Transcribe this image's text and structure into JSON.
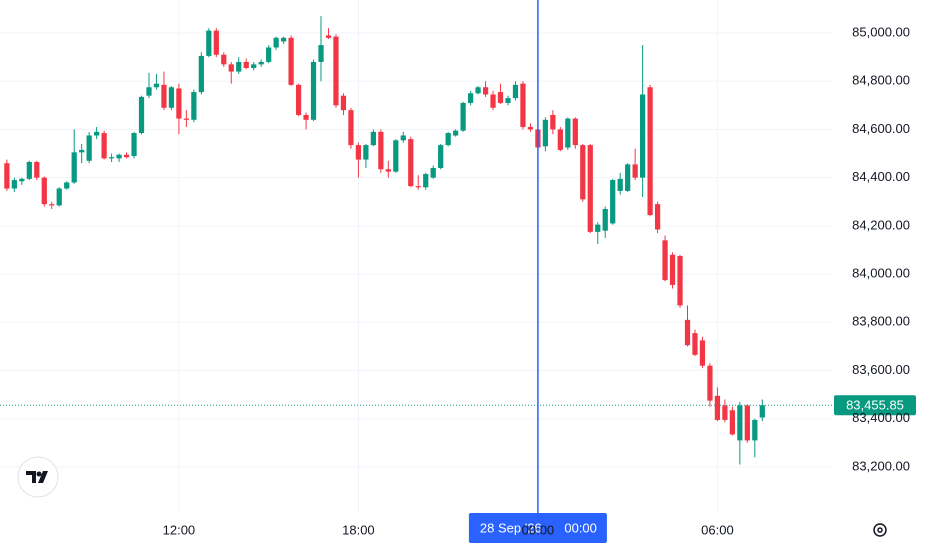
{
  "chart_data": {
    "type": "candlestick",
    "x": [
      6.25,
      6.5,
      6.75,
      7,
      7.25,
      7.5,
      7.75,
      8,
      8.25,
      8.5,
      8.75,
      9,
      9.25,
      9.5,
      9.75,
      10,
      10.25,
      10.5,
      10.75,
      11,
      11.25,
      11.5,
      11.75,
      12,
      12.25,
      12.5,
      12.75,
      13,
      13.25,
      13.5,
      13.75,
      14,
      14.25,
      14.5,
      14.75,
      15,
      15.25,
      15.5,
      15.75,
      16,
      16.25,
      16.5,
      16.75,
      17,
      17.25,
      17.5,
      17.75,
      18,
      18.25,
      18.5,
      18.75,
      19,
      19.25,
      19.5,
      19.75,
      20,
      20.25,
      20.5,
      20.75,
      21,
      21.25,
      21.5,
      21.75,
      22,
      22.25,
      22.5,
      22.75,
      23,
      23.25,
      23.5,
      23.75,
      24,
      24.25,
      24.5,
      24.75,
      25,
      25.25,
      25.5,
      25.75,
      26,
      26.25,
      26.5,
      26.75,
      27,
      27.25,
      27.5,
      27.75,
      28,
      28.25,
      28.5,
      28.75,
      29,
      29.25,
      29.5,
      29.75,
      30,
      30.25,
      30.5,
      30.75,
      31,
      31.25,
      31.5
    ],
    "open": [
      84460,
      84355,
      84385,
      84395,
      84465,
      84400,
      84290,
      84285,
      84355,
      84380,
      84505,
      84470,
      84575,
      84585,
      84480,
      84480,
      84495,
      84490,
      84585,
      84740,
      84775,
      84785,
      84690,
      84770,
      84645,
      84640,
      84755,
      84905,
      85010,
      84910,
      84870,
      84840,
      84880,
      84855,
      84870,
      84880,
      84940,
      84965,
      84980,
      84785,
      84660,
      84640,
      84880,
      84990,
      84985,
      84740,
      84680,
      84535,
      84475,
      84535,
      84590,
      84435,
      84425,
      84555,
      84560,
      84365,
      84360,
      84400,
      84440,
      84535,
      84575,
      84595,
      84710,
      84750,
      84775,
      84745,
      84755,
      84710,
      84730,
      84790,
      84610,
      84600,
      84530,
      84660,
      84600,
      84525,
      84645,
      84535,
      84535,
      84175,
      84180,
      84210,
      84345,
      84345,
      84455,
      84400,
      84775,
      84290,
      84140,
      84080,
      84075,
      83810,
      83755,
      83725,
      83620,
      83495,
      83455,
      83435,
      83310,
      83455,
      83310,
      83405
    ],
    "high": [
      84475,
      84400,
      84400,
      84470,
      84470,
      84405,
      84300,
      84360,
      84385,
      84600,
      84540,
      84590,
      84610,
      84595,
      84500,
      84500,
      84505,
      84590,
      84740,
      84835,
      84830,
      84840,
      84780,
      84790,
      84680,
      84765,
      84920,
      85020,
      85020,
      84920,
      84880,
      84900,
      84895,
      84880,
      84890,
      84950,
      84985,
      84985,
      84990,
      84790,
      84670,
      84890,
      85070,
      85020,
      84995,
      84750,
      84690,
      84545,
      84540,
      84600,
      84600,
      84470,
      84560,
      84590,
      84570,
      84410,
      84420,
      84450,
      84540,
      84590,
      84600,
      84715,
      84760,
      84780,
      84800,
      84760,
      84790,
      84740,
      84800,
      84800,
      84625,
      84610,
      84650,
      84680,
      84610,
      84650,
      84650,
      84540,
      84540,
      84215,
      84280,
      84395,
      84420,
      84460,
      84520,
      84950,
      84785,
      84300,
      84160,
      84090,
      84080,
      83870,
      83770,
      83740,
      83630,
      83530,
      83480,
      83450,
      83470,
      83460,
      83400,
      83480
    ],
    "low": [
      84345,
      84340,
      84370,
      84390,
      84390,
      84280,
      84270,
      84280,
      84350,
      84375,
      84460,
      84460,
      84560,
      84475,
      84465,
      84465,
      84480,
      84480,
      84580,
      84730,
      84765,
      84680,
      84680,
      84580,
      84610,
      84630,
      84745,
      84900,
      84900,
      84860,
      84790,
      84830,
      84850,
      84845,
      84860,
      84875,
      84930,
      84955,
      84780,
      84655,
      84600,
      84635,
      84800,
      84975,
      84690,
      84660,
      84520,
      84400,
      84440,
      84530,
      84420,
      84400,
      84420,
      84545,
      84360,
      84350,
      84350,
      84395,
      84435,
      84530,
      84570,
      84590,
      84700,
      84745,
      84735,
      84680,
      84705,
      84700,
      84720,
      84600,
      84590,
      84510,
      84510,
      84580,
      84510,
      84515,
      84520,
      84300,
      84170,
      84125,
      84150,
      84205,
      84330,
      84340,
      84390,
      84320,
      84240,
      84170,
      83970,
      83940,
      83860,
      83700,
      83660,
      83610,
      83450,
      83390,
      83385,
      83330,
      83210,
      83300,
      83240,
      83390
    ],
    "close": [
      84355,
      84390,
      84395,
      84465,
      84400,
      84290,
      84285,
      84355,
      84380,
      84505,
      84515,
      84575,
      84590,
      84480,
      84485,
      84495,
      84485,
      84585,
      84735,
      84775,
      84790,
      84690,
      84775,
      84645,
      84640,
      84755,
      84905,
      85010,
      84910,
      84870,
      84840,
      84880,
      84855,
      84870,
      84880,
      84940,
      84980,
      84980,
      84785,
      84660,
      84640,
      84880,
      84950,
      84980,
      84700,
      84680,
      84535,
      84475,
      84535,
      84590,
      84435,
      84425,
      84555,
      84575,
      84365,
      84360,
      84415,
      84440,
      84535,
      84585,
      84595,
      84710,
      84750,
      84775,
      84745,
      84690,
      84710,
      84730,
      84785,
      84610,
      84600,
      84525,
      84640,
      84600,
      84515,
      84645,
      84535,
      84310,
      84175,
      84205,
      84270,
      84390,
      84395,
      84455,
      84400,
      84745,
      84245,
      84185,
      83975,
      83955,
      83870,
      83705,
      83665,
      83620,
      83475,
      83395,
      83395,
      83335,
      83455,
      83310,
      83395,
      83455.85
    ],
    "up_color": "#089981",
    "down_color": "#f23645",
    "xlim": [
      6.02,
      33.83
    ],
    "ylim": [
      83013,
      85137
    ],
    "xticks": [
      {
        "value": 12,
        "label": "12:00"
      },
      {
        "value": 18,
        "label": "18:00"
      },
      {
        "value": 24,
        "label": "00:00"
      },
      {
        "value": 30,
        "label": "06:00"
      }
    ],
    "yticks": [
      {
        "value": 83200,
        "label": "83,200.00"
      },
      {
        "value": 83400,
        "label": "83,400.00"
      },
      {
        "value": 83600,
        "label": "83,600.00"
      },
      {
        "value": 83800,
        "label": "83,800.00"
      },
      {
        "value": 84000,
        "label": "84,000.00"
      },
      {
        "value": 84200,
        "label": "84,200.00"
      },
      {
        "value": 84400,
        "label": "84,400.00"
      },
      {
        "value": 84600,
        "label": "84,600.00"
      },
      {
        "value": 84800,
        "label": "84,800.00"
      },
      {
        "value": 85000,
        "label": "85,000.00"
      }
    ],
    "grid": true,
    "crosshair": {
      "x": 24,
      "date_label": "28 Sep '26",
      "time_label": "00:00",
      "color": "#2962ff"
    },
    "last_price": {
      "value": 83455.85,
      "label": "83,455.85",
      "color": "#089981"
    }
  }
}
